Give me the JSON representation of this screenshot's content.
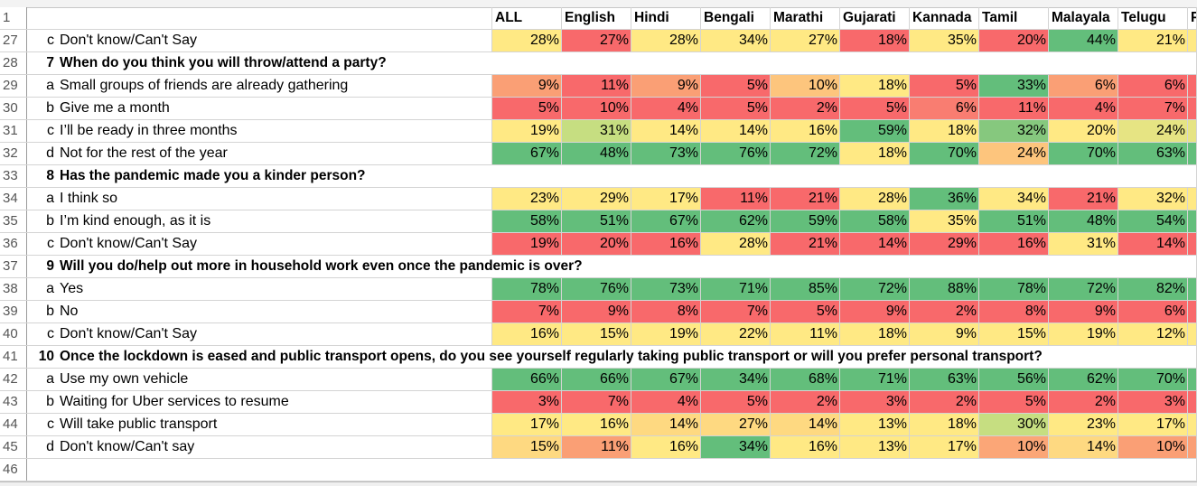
{
  "palette": {
    "R": "#F8696B",
    "R2": "#F97D71",
    "O": "#FA9F75",
    "O2": "#FBA677",
    "LO": "#FDC57D",
    "Y2": "#FED981",
    "Y": "#FFE984",
    "LG": "#C6DE81",
    "G2": "#86C87E",
    "G": "#63BE7B",
    "YG": "#E6E483"
  },
  "header": {
    "num": "1",
    "columns": [
      "ALL",
      "English",
      "Hindi",
      "Bengali",
      "Marathi",
      "Gujarati",
      "Kannada",
      "Tamil",
      "Malayala",
      "Telugu",
      "P"
    ]
  },
  "rows": [
    {
      "num": "27",
      "letter": "c",
      "text": "Don't know/Can't Say",
      "values": [
        "28%",
        "27%",
        "28%",
        "34%",
        "27%",
        "18%",
        "35%",
        "20%",
        "44%",
        "21%"
      ],
      "colors": [
        "Y",
        "R",
        "Y",
        "Y",
        "Y",
        "R",
        "Y",
        "R",
        "G",
        "Y"
      ]
    },
    {
      "num": "28",
      "letter": "7",
      "text": "When do you think you will throw/attend a party?",
      "bold": true
    },
    {
      "num": "29",
      "letter": "a",
      "text": "Small groups of friends are already gathering",
      "values": [
        "9%",
        "11%",
        "9%",
        "5%",
        "10%",
        "18%",
        "5%",
        "33%",
        "6%",
        "6%"
      ],
      "colors": [
        "O",
        "R",
        "O",
        "R",
        "LO",
        "Y",
        "R",
        "G",
        "O",
        "R"
      ]
    },
    {
      "num": "30",
      "letter": "b",
      "text": "Give me a month",
      "values": [
        "5%",
        "10%",
        "4%",
        "5%",
        "2%",
        "5%",
        "6%",
        "11%",
        "4%",
        "7%"
      ],
      "colors": [
        "R",
        "R",
        "R",
        "R",
        "R",
        "R",
        "R2",
        "R",
        "R",
        "R"
      ]
    },
    {
      "num": "31",
      "letter": "c",
      "text": "I’ll be ready in three months",
      "values": [
        "19%",
        "31%",
        "14%",
        "14%",
        "16%",
        "59%",
        "18%",
        "32%",
        "20%",
        "24%"
      ],
      "colors": [
        "Y",
        "LG",
        "Y",
        "Y",
        "Y",
        "G",
        "Y",
        "G2",
        "Y",
        "YG"
      ]
    },
    {
      "num": "32",
      "letter": "d",
      "text": "Not for the rest of the year",
      "values": [
        "67%",
        "48%",
        "73%",
        "76%",
        "72%",
        "18%",
        "70%",
        "24%",
        "70%",
        "63%"
      ],
      "colors": [
        "G",
        "G",
        "G",
        "G",
        "G",
        "Y",
        "G",
        "LO",
        "G",
        "G"
      ]
    },
    {
      "num": "33",
      "letter": "8",
      "text": "Has the pandemic made you a kinder person?",
      "bold": true
    },
    {
      "num": "34",
      "letter": "a",
      "text": "I think so",
      "values": [
        "23%",
        "29%",
        "17%",
        "11%",
        "21%",
        "28%",
        "36%",
        "34%",
        "21%",
        "32%"
      ],
      "colors": [
        "Y",
        "Y",
        "Y",
        "R",
        "R",
        "Y",
        "G",
        "Y",
        "R",
        "Y"
      ]
    },
    {
      "num": "35",
      "letter": "b",
      "text": "I’m kind enough, as it is",
      "values": [
        "58%",
        "51%",
        "67%",
        "62%",
        "59%",
        "58%",
        "35%",
        "51%",
        "48%",
        "54%"
      ],
      "colors": [
        "G",
        "G",
        "G",
        "G",
        "G",
        "G",
        "Y",
        "G",
        "G",
        "G"
      ]
    },
    {
      "num": "36",
      "letter": "c",
      "text": "Don't know/Can't Say",
      "values": [
        "19%",
        "20%",
        "16%",
        "28%",
        "21%",
        "14%",
        "29%",
        "16%",
        "31%",
        "14%"
      ],
      "colors": [
        "R",
        "R",
        "R",
        "Y",
        "R",
        "R",
        "R",
        "R",
        "Y",
        "R"
      ]
    },
    {
      "num": "37",
      "letter": "9",
      "text": "Will you do/help out more in household work even once the pandemic is over?",
      "bold": true
    },
    {
      "num": "38",
      "letter": "a",
      "text": "Yes",
      "values": [
        "78%",
        "76%",
        "73%",
        "71%",
        "85%",
        "72%",
        "88%",
        "78%",
        "72%",
        "82%"
      ],
      "colors": [
        "G",
        "G",
        "G",
        "G",
        "G",
        "G",
        "G",
        "G",
        "G",
        "G"
      ]
    },
    {
      "num": "39",
      "letter": "b",
      "text": "No",
      "values": [
        "7%",
        "9%",
        "8%",
        "7%",
        "5%",
        "9%",
        "2%",
        "8%",
        "9%",
        "6%"
      ],
      "colors": [
        "R",
        "R",
        "R",
        "R",
        "R",
        "R",
        "R",
        "R",
        "R",
        "R"
      ]
    },
    {
      "num": "40",
      "letter": "c",
      "text": "Don't know/Can't Say",
      "values": [
        "16%",
        "15%",
        "19%",
        "22%",
        "11%",
        "18%",
        "9%",
        "15%",
        "19%",
        "12%"
      ],
      "colors": [
        "Y",
        "Y",
        "Y",
        "Y",
        "Y",
        "Y",
        "Y",
        "Y",
        "Y",
        "Y"
      ]
    },
    {
      "num": "41",
      "letter": "10",
      "text": "Once the lockdown is eased and public transport opens, do you see yourself regularly taking public transport or will you prefer personal transport?",
      "bold": true
    },
    {
      "num": "42",
      "letter": "a",
      "text": "Use my own vehicle",
      "values": [
        "66%",
        "66%",
        "67%",
        "34%",
        "68%",
        "71%",
        "63%",
        "56%",
        "62%",
        "70%"
      ],
      "colors": [
        "G",
        "G",
        "G",
        "G",
        "G",
        "G",
        "G",
        "G",
        "G",
        "G"
      ]
    },
    {
      "num": "43",
      "letter": "b",
      "text": "Waiting for Uber services to resume",
      "values": [
        "3%",
        "7%",
        "4%",
        "5%",
        "2%",
        "3%",
        "2%",
        "5%",
        "2%",
        "3%"
      ],
      "colors": [
        "R",
        "R",
        "R",
        "R",
        "R",
        "R",
        "R",
        "R",
        "R",
        "R"
      ]
    },
    {
      "num": "44",
      "letter": "c",
      "text": "Will take public transport",
      "values": [
        "17%",
        "16%",
        "14%",
        "27%",
        "14%",
        "13%",
        "18%",
        "30%",
        "23%",
        "17%"
      ],
      "colors": [
        "Y",
        "Y",
        "Y2",
        "Y2",
        "Y2",
        "Y",
        "Y",
        "LG",
        "Y",
        "Y"
      ]
    },
    {
      "num": "45",
      "letter": "d",
      "text": "Don't know/Can't say",
      "values": [
        "15%",
        "11%",
        "16%",
        "34%",
        "16%",
        "13%",
        "17%",
        "10%",
        "14%",
        "10%"
      ],
      "colors": [
        "Y2",
        "O",
        "Y",
        "G",
        "Y",
        "Y",
        "Y",
        "O2",
        "Y2",
        "O"
      ]
    },
    {
      "num": "46",
      "letter": "",
      "text": ""
    }
  ]
}
